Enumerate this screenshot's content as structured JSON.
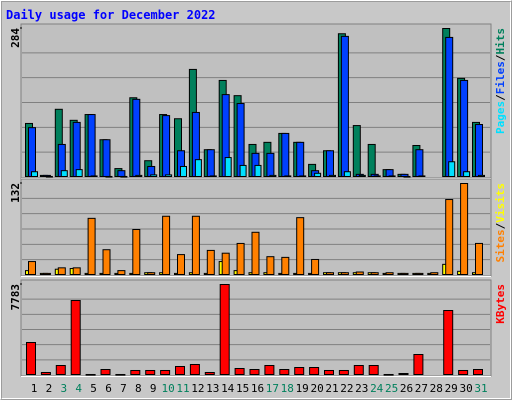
{
  "title": "Daily usage for December 2022",
  "separator": "/",
  "chart_data": [
    {
      "type": "bar",
      "ylim": [
        0,
        284
      ],
      "yticks": [
        284
      ],
      "series": [
        {
          "name": "Hits",
          "color": "#00805c",
          "values": [
            103,
            4,
            130,
            109,
            120,
            72,
            17,
            152,
            32,
            120,
            112,
            206,
            53,
            185,
            156,
            63,
            67,
            84,
            67,
            25,
            51,
            274,
            99,
            63,
            15,
            6,
            61,
            0,
            284,
            189,
            105
          ]
        },
        {
          "name": "Files",
          "color": "#0040ff",
          "values": [
            95,
            4,
            63,
            105,
            120,
            72,
            13,
            149,
            21,
            118,
            51,
            124,
            53,
            158,
            141,
            46,
            46,
            84,
            67,
            13,
            51,
            269,
            6,
            6,
            15,
            6,
            53,
            0,
            267,
            185,
            101
          ]
        },
        {
          "name": "Pages",
          "color": "#00e0ff",
          "values": [
            11,
            2,
            13,
            15,
            3,
            2,
            2,
            4,
            5,
            5,
            21,
            34,
            3,
            38,
            23,
            23,
            4,
            3,
            3,
            8,
            4,
            11,
            4,
            3,
            3,
            2,
            3,
            0,
            30,
            11,
            4
          ]
        }
      ]
    },
    {
      "type": "bar",
      "ylim": [
        0,
        132
      ],
      "yticks": [
        132
      ],
      "series": [
        {
          "name": "Visits",
          "color": "#ffff00",
          "values": [
            7,
            3,
            9,
            10,
            3,
            3,
            3,
            3,
            4,
            4,
            3,
            4,
            3,
            20,
            7,
            4,
            4,
            3,
            3,
            3,
            4,
            4,
            4,
            4,
            3,
            3,
            3,
            3,
            16,
            6,
            4
          ]
        },
        {
          "name": "Sites",
          "color": "#ff8000",
          "values": [
            20,
            3,
            11,
            11,
            82,
            37,
            7,
            66,
            4,
            85,
            30,
            85,
            36,
            32,
            46,
            62,
            27,
            26,
            83,
            23,
            4,
            4,
            5,
            4,
            4,
            3,
            3,
            4,
            109,
            132,
            46
          ]
        }
      ]
    },
    {
      "type": "bar",
      "ylim": [
        0,
        7783
      ],
      "yticks": [
        7783
      ],
      "categories": [
        "1",
        "2",
        "3",
        "4",
        "5",
        "6",
        "7",
        "8",
        "9",
        "10",
        "11",
        "12",
        "13",
        "14",
        "15",
        "16",
        "17",
        "18",
        "19",
        "20",
        "21",
        "22",
        "23",
        "24",
        "25",
        "26",
        "27",
        "28",
        "29",
        "30",
        "31"
      ],
      "label_colors": [
        "#000000",
        "#000000",
        "#00805c",
        "#00805c",
        "#000000",
        "#000000",
        "#000000",
        "#000000",
        "#000000",
        "#00805c",
        "#00805c",
        "#000000",
        "#000000",
        "#000000",
        "#000000",
        "#000000",
        "#00805c",
        "#00805c",
        "#000000",
        "#000000",
        "#000000",
        "#000000",
        "#000000",
        "#00805c",
        "#00805c",
        "#000000",
        "#000000",
        "#000000",
        "#000000",
        "#000000",
        "#00805c"
      ],
      "series": [
        {
          "name": "KBytes",
          "color": "#ff0000",
          "values": [
            2822,
            257,
            855,
            6414,
            86,
            513,
            86,
            428,
            428,
            428,
            770,
            941,
            257,
            7783,
            599,
            513,
            855,
            513,
            684,
            684,
            428,
            428,
            855,
            855,
            86,
            171,
            1796,
            0,
            5559,
            428,
            513
          ]
        }
      ]
    }
  ]
}
